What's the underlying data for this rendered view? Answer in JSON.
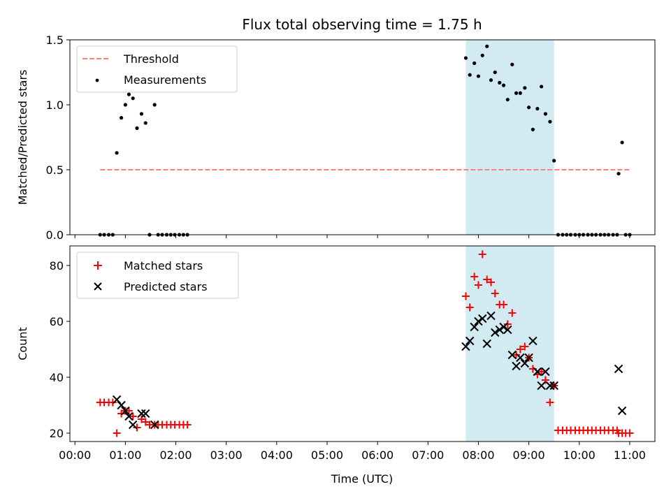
{
  "title": "Flux total observing time = 1.75 h",
  "colors": {
    "threshold": "#ff7f7f",
    "measurement": "#000000",
    "matched": "#ff0000",
    "predicted": "#000000",
    "highlight": "#add8e6"
  },
  "chart_data": [
    {
      "type": "scatter",
      "name": "ratio-panel",
      "ylabel": "Matched/Predicted stars",
      "xlabel": "",
      "xlim": [
        -0.1,
        11.5
      ],
      "ylim": [
        0,
        1.5
      ],
      "yticks": [
        0.0,
        0.5,
        1.0,
        1.5
      ],
      "ytick_labels": [
        "0.0",
        "0.5",
        "1.0",
        "1.5"
      ],
      "highlight": {
        "x0": 7.75,
        "x1": 9.5
      },
      "legend": {
        "placement": "top-left",
        "entries": [
          "Threshold",
          "Measurements"
        ]
      },
      "threshold": {
        "name": "Threshold",
        "x": [
          0.5,
          11.0
        ],
        "y": 0.5
      },
      "series": [
        {
          "name": "Measurements",
          "points": [
            [
              0.5,
              0
            ],
            [
              0.58,
              0
            ],
            [
              0.67,
              0
            ],
            [
              0.75,
              0
            ],
            [
              0.83,
              0.63
            ],
            [
              0.92,
              0.9
            ],
            [
              1.0,
              1.0
            ],
            [
              1.07,
              1.08
            ],
            [
              1.15,
              1.05
            ],
            [
              1.23,
              0.82
            ],
            [
              1.32,
              0.93
            ],
            [
              1.4,
              0.86
            ],
            [
              1.48,
              0
            ],
            [
              1.58,
              1.0
            ],
            [
              1.65,
              0
            ],
            [
              1.73,
              0
            ],
            [
              1.82,
              0
            ],
            [
              1.9,
              0
            ],
            [
              1.98,
              0
            ],
            [
              2.07,
              0
            ],
            [
              2.15,
              0
            ],
            [
              2.23,
              0
            ],
            [
              7.75,
              1.36
            ],
            [
              7.83,
              1.23
            ],
            [
              7.92,
              1.32
            ],
            [
              8.0,
              1.22
            ],
            [
              8.08,
              1.38
            ],
            [
              8.17,
              1.45
            ],
            [
              8.25,
              1.19
            ],
            [
              8.33,
              1.25
            ],
            [
              8.42,
              1.17
            ],
            [
              8.5,
              1.15
            ],
            [
              8.58,
              1.04
            ],
            [
              8.67,
              1.31
            ],
            [
              8.75,
              1.09
            ],
            [
              8.83,
              1.09
            ],
            [
              8.92,
              1.13
            ],
            [
              9.0,
              0.98
            ],
            [
              9.08,
              0.81
            ],
            [
              9.17,
              0.97
            ],
            [
              9.25,
              1.14
            ],
            [
              9.33,
              0.93
            ],
            [
              9.42,
              0.87
            ],
            [
              9.5,
              0.57
            ],
            [
              9.58,
              0
            ],
            [
              9.67,
              0
            ],
            [
              9.75,
              0
            ],
            [
              9.83,
              0
            ],
            [
              9.92,
              0
            ],
            [
              10.0,
              0
            ],
            [
              10.08,
              0
            ],
            [
              10.17,
              0
            ],
            [
              10.25,
              0
            ],
            [
              10.33,
              0
            ],
            [
              10.42,
              0
            ],
            [
              10.5,
              0
            ],
            [
              10.58,
              0
            ],
            [
              10.67,
              0
            ],
            [
              10.75,
              0
            ],
            [
              10.78,
              0.47
            ],
            [
              10.85,
              0.71
            ],
            [
              10.92,
              0
            ],
            [
              11.0,
              0
            ]
          ]
        }
      ]
    },
    {
      "type": "scatter",
      "name": "count-panel",
      "ylabel": "Count",
      "xlabel": "Time (UTC)",
      "xlim": [
        -0.1,
        11.5
      ],
      "ylim": [
        17,
        87
      ],
      "yticks": [
        20,
        40,
        60,
        80
      ],
      "ytick_labels": [
        "20",
        "40",
        "60",
        "80"
      ],
      "xticks": [
        0,
        1,
        2,
        3,
        4,
        5,
        6,
        7,
        8,
        9,
        10,
        11
      ],
      "xtick_labels": [
        "00:00",
        "01:00",
        "02:00",
        "03:00",
        "04:00",
        "05:00",
        "06:00",
        "07:00",
        "08:00",
        "09:00",
        "10:00",
        "11:00"
      ],
      "highlight": {
        "x0": 7.75,
        "x1": 9.5
      },
      "legend": {
        "placement": "top-left",
        "entries": [
          "Matched stars",
          "Predicted stars"
        ]
      },
      "series": [
        {
          "name": "Matched stars",
          "points": [
            [
              0.5,
              31
            ],
            [
              0.58,
              31
            ],
            [
              0.67,
              31
            ],
            [
              0.75,
              31
            ],
            [
              0.83,
              20
            ],
            [
              0.92,
              27
            ],
            [
              1.0,
              28
            ],
            [
              1.07,
              28
            ],
            [
              1.15,
              26
            ],
            [
              1.23,
              22
            ],
            [
              1.32,
              25
            ],
            [
              1.4,
              24
            ],
            [
              1.48,
              23
            ],
            [
              1.58,
              23
            ],
            [
              1.65,
              23
            ],
            [
              1.73,
              23
            ],
            [
              1.82,
              23
            ],
            [
              1.9,
              23
            ],
            [
              1.98,
              23
            ],
            [
              2.07,
              23
            ],
            [
              2.15,
              23
            ],
            [
              2.23,
              23
            ],
            [
              7.75,
              69
            ],
            [
              7.83,
              65
            ],
            [
              7.92,
              76
            ],
            [
              8.0,
              73
            ],
            [
              8.08,
              84
            ],
            [
              8.17,
              75
            ],
            [
              8.25,
              74
            ],
            [
              8.33,
              70
            ],
            [
              8.42,
              66
            ],
            [
              8.5,
              66
            ],
            [
              8.58,
              59
            ],
            [
              8.67,
              63
            ],
            [
              8.75,
              48
            ],
            [
              8.83,
              50
            ],
            [
              8.92,
              51
            ],
            [
              9.0,
              47
            ],
            [
              9.08,
              43
            ],
            [
              9.17,
              41
            ],
            [
              9.25,
              42
            ],
            [
              9.33,
              39
            ],
            [
              9.42,
              31
            ],
            [
              9.5,
              37
            ],
            [
              9.58,
              21
            ],
            [
              9.67,
              21
            ],
            [
              9.75,
              21
            ],
            [
              9.83,
              21
            ],
            [
              9.92,
              21
            ],
            [
              10.0,
              21
            ],
            [
              10.08,
              21
            ],
            [
              10.17,
              21
            ],
            [
              10.25,
              21
            ],
            [
              10.33,
              21
            ],
            [
              10.42,
              21
            ],
            [
              10.5,
              21
            ],
            [
              10.58,
              21
            ],
            [
              10.67,
              21
            ],
            [
              10.75,
              21
            ],
            [
              10.78,
              20
            ],
            [
              10.85,
              20
            ],
            [
              10.92,
              20
            ],
            [
              11.0,
              20
            ]
          ]
        },
        {
          "name": "Predicted stars",
          "points": [
            [
              0.83,
              32
            ],
            [
              0.92,
              30
            ],
            [
              1.0,
              28
            ],
            [
              1.07,
              26
            ],
            [
              1.15,
              23
            ],
            [
              1.32,
              27
            ],
            [
              1.4,
              27
            ],
            [
              1.58,
              23
            ],
            [
              7.75,
              51
            ],
            [
              7.83,
              53
            ],
            [
              7.92,
              58
            ],
            [
              8.0,
              60
            ],
            [
              8.08,
              61
            ],
            [
              8.17,
              52
            ],
            [
              8.25,
              62
            ],
            [
              8.33,
              56
            ],
            [
              8.42,
              57
            ],
            [
              8.5,
              58
            ],
            [
              8.58,
              57
            ],
            [
              8.67,
              48
            ],
            [
              8.75,
              44
            ],
            [
              8.83,
              47
            ],
            [
              8.92,
              45
            ],
            [
              9.0,
              47
            ],
            [
              9.08,
              53
            ],
            [
              9.17,
              42
            ],
            [
              9.25,
              37
            ],
            [
              9.33,
              42
            ],
            [
              9.42,
              37
            ],
            [
              9.5,
              37
            ],
            [
              10.78,
              43
            ],
            [
              10.85,
              28
            ]
          ]
        }
      ]
    }
  ]
}
